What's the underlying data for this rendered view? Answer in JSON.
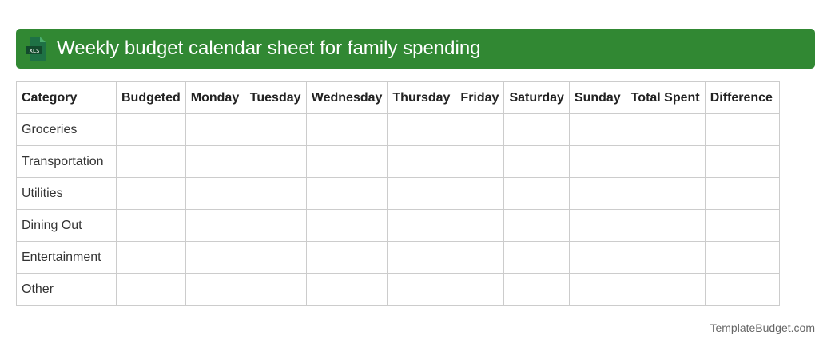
{
  "header": {
    "title": "Weekly budget calendar sheet for family spending",
    "icon": "xls-file-icon",
    "icon_label": "XLS",
    "color": "#318833"
  },
  "table": {
    "columns": [
      "Category",
      "Budgeted",
      "Monday",
      "Tuesday",
      "Wednesday",
      "Thursday",
      "Friday",
      "Saturday",
      "Sunday",
      "Total Spent",
      "Difference"
    ],
    "rows": [
      "Groceries",
      "Transportation",
      "Utilities",
      "Dining Out",
      "Entertainment",
      "Other"
    ]
  },
  "footer": {
    "brand": "TemplateBudget.com"
  }
}
